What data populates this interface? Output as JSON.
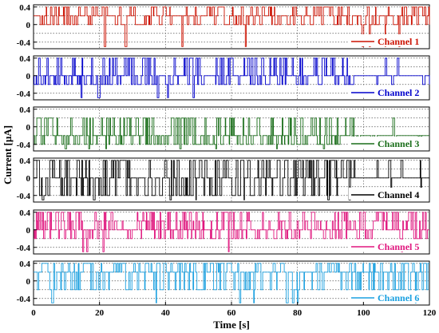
{
  "chart_data": {
    "type": "line",
    "xlabel": "Time [s]",
    "ylabel": "Current [µA]",
    "xlim": [
      0,
      120
    ],
    "ylim": [
      -0.55,
      0.45
    ],
    "xticks": [
      0,
      20,
      40,
      60,
      80,
      100,
      120
    ],
    "xtick_labels": [
      "0",
      "20",
      "40",
      "60",
      "80",
      "100",
      "120"
    ],
    "yticks": [
      -0.4,
      0,
      0.4
    ],
    "ytick_labels": [
      "-0.4",
      "0",
      "0.4"
    ],
    "grid": true,
    "legend_position": "bottom-right inside each panel",
    "levels": [
      -0.4,
      -0.2,
      0,
      0.2,
      0.4
    ],
    "series": [
      {
        "name": "Channel 1",
        "color": "#cc1100",
        "base_level": 0.2,
        "main_jump_levels": [
          0.4,
          0.0
        ],
        "deep_spike": -0.5,
        "burst_rate": 1.4,
        "pattern_change_time": null
      },
      {
        "name": "Channel 2",
        "color": "#0000cc",
        "base_level": 0.0,
        "main_jump_levels": [
          0.4,
          -0.2
        ],
        "deep_spike": -0.5,
        "burst_rate": 1.6,
        "pattern_change_time": 96
      },
      {
        "name": "Channel 3",
        "color": "#1a6e1a",
        "base_level": -0.2,
        "main_jump_levels": [
          0.2,
          -0.4
        ],
        "deep_spike": -0.5,
        "burst_rate": 1.6,
        "pattern_change_time": 97
      },
      {
        "name": "Channel 4",
        "color": "#000000",
        "base_level": 0.0,
        "main_jump_levels": [
          0.4,
          -0.4
        ],
        "deep_spike": -0.5,
        "burst_rate": 1.4,
        "pattern_change_time": 96
      },
      {
        "name": "Channel 5",
        "color": "#e0167e",
        "base_level": 0.0,
        "main_jump_levels": [
          0.2,
          -0.2,
          0.4
        ],
        "deep_spike": -0.5,
        "burst_rate": 1.8,
        "pattern_change_time": null
      },
      {
        "name": "Channel 6",
        "color": "#1aa0e0",
        "base_level": 0.2,
        "main_jump_levels": [
          0.4,
          -0.2
        ],
        "deep_spike": -0.5,
        "burst_rate": 1.4,
        "pattern_change_time": null
      }
    ]
  }
}
